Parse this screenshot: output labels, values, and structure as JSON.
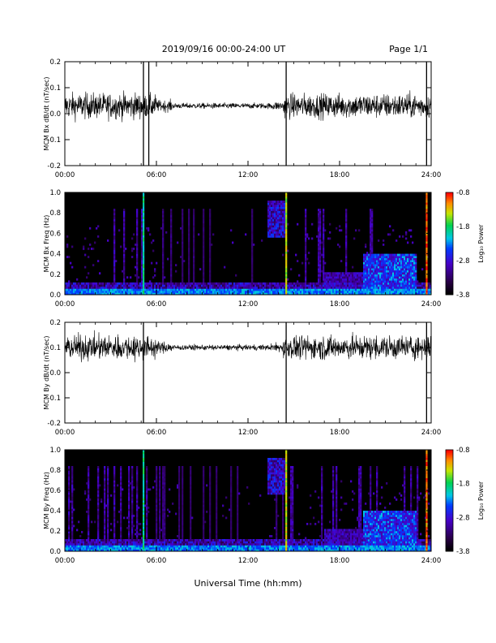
{
  "header": {
    "title": "2019/09/16  00:00-24:00 UT",
    "page": "Page 1/1"
  },
  "xaxis": {
    "label": "Universal Time (hh:mm)",
    "ticks": [
      "00:00",
      "06:00",
      "12:00",
      "18:00",
      "24:00"
    ]
  },
  "colorbar": {
    "label": "Log₁₀ Power",
    "ticks": [
      "-0.8",
      "-1.8",
      "-2.8",
      "-3.8"
    ],
    "range": [
      -3.8,
      -0.8
    ]
  },
  "chart_data": [
    {
      "type": "line",
      "ylabel": "MCM Bx dB/dt (nT/sec)",
      "xlim": [
        0,
        24
      ],
      "ylim": [
        -0.2,
        0.2
      ],
      "yticks": [
        "0.2",
        "0.1",
        "0.0",
        "-0.1",
        "-0.2"
      ],
      "baseline": 0.03,
      "spikes_hours": [
        5.15,
        5.5,
        14.5,
        23.7
      ]
    },
    {
      "type": "heatmap",
      "ylabel": "MCM Bx Freq (Hz)",
      "xlim": [
        0,
        24
      ],
      "ylim": [
        0,
        1.0
      ],
      "yticks": [
        "1.0",
        "0.8",
        "0.6",
        "0.4",
        "0.2",
        "0.0"
      ],
      "zlim": [
        -3.8,
        -0.8
      ]
    },
    {
      "type": "line",
      "ylabel": "MCM By dB/dt (nT/sec)",
      "xlim": [
        0,
        24
      ],
      "ylim": [
        -0.2,
        0.2
      ],
      "yticks": [
        "0.2",
        "0.1",
        "0.0",
        "-0.1",
        "-0.2"
      ],
      "baseline": 0.1,
      "spikes_hours": [
        5.15,
        14.5,
        23.7
      ]
    },
    {
      "type": "heatmap",
      "ylabel": "MCM By Freq (Hz)",
      "xlim": [
        0,
        24
      ],
      "ylim": [
        0,
        1.0
      ],
      "yticks": [
        "1.0",
        "0.8",
        "0.6",
        "0.4",
        "0.2",
        "0.0"
      ],
      "zlim": [
        -3.8,
        -0.8
      ]
    }
  ]
}
